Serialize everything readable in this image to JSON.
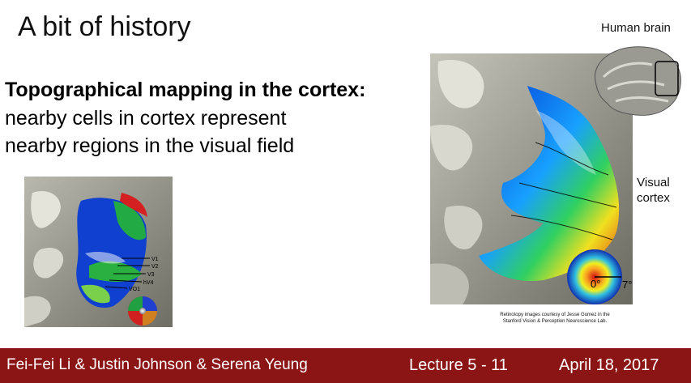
{
  "slide": {
    "title": "A bit of history",
    "heading": "Topographical mapping in the cortex:",
    "body_lines": [
      "nearby cells in cortex represent",
      "nearby regions in the visual field"
    ],
    "area_labels": [
      "V1",
      "V2",
      "V3",
      "hV4",
      "VO1"
    ],
    "human_brain_label": "Human brain",
    "visual_cortex_label_1": "Visual",
    "visual_cortex_label_2": "cortex",
    "eccentricity_inner": "0°",
    "eccentricity_outer": "7°",
    "credit_line_1": "Retinotopy images courtesy of Jesse Gomez in the",
    "credit_line_2": "Stanford Vision & Perception Neuroscience Lab."
  },
  "footer": {
    "authors": "Fei-Fei Li & Justin Johnson & Serena Yeung",
    "lecture": "Lecture 5 -  11",
    "date": "April 18, 2017"
  },
  "colors": {
    "footer_bg": "#8b1515",
    "footer_text": "#ffffff"
  }
}
